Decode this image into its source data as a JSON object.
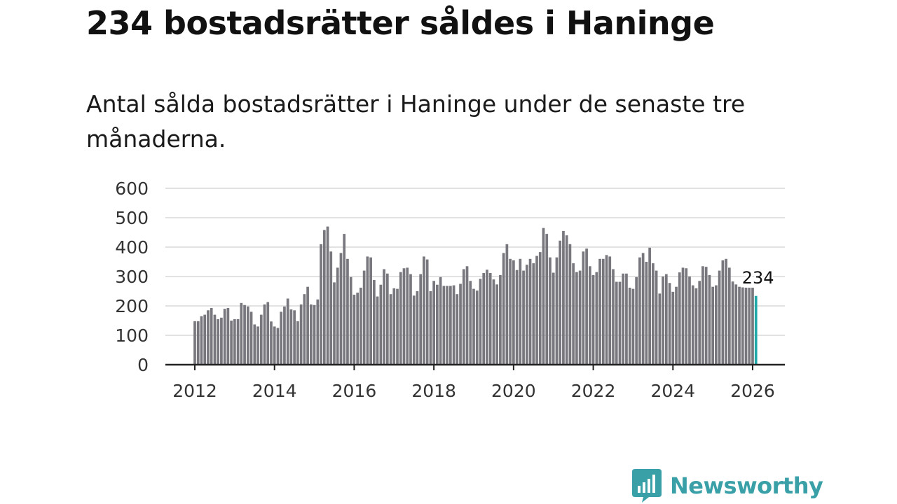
{
  "header": {
    "title": "234 bostadsrätter såldes i Haninge",
    "subtitle": "Antal sålda bostadsrätter i Haninge under de senaste tre månaderna."
  },
  "brand": {
    "name": "Newsworthy"
  },
  "colors": {
    "bar": "#77777d",
    "highlight": "#1fa8a8",
    "grid": "#d9d9d9",
    "axis": "#222222",
    "brand": "#3aa0a8"
  },
  "chart_data": {
    "type": "bar",
    "title": "Antal sålda bostadsrätter i Haninge under de senaste tre månaderna.",
    "xlabel": "",
    "ylabel": "",
    "ylim": [
      0,
      600
    ],
    "y_ticks": [
      "600",
      "500",
      "400",
      "300",
      "200",
      "100",
      "0"
    ],
    "x_ticks": [
      "2012",
      "2014",
      "2016",
      "2018",
      "2020",
      "2022",
      "2024",
      "2026"
    ],
    "start": "2012-01",
    "values": [
      148,
      148,
      165,
      170,
      185,
      193,
      170,
      155,
      160,
      190,
      193,
      150,
      155,
      155,
      210,
      203,
      198,
      180,
      137,
      130,
      170,
      205,
      213,
      147,
      130,
      125,
      180,
      198,
      225,
      188,
      185,
      148,
      205,
      240,
      265,
      205,
      203,
      222,
      410,
      458,
      470,
      385,
      280,
      330,
      380,
      445,
      360,
      298,
      238,
      245,
      262,
      320,
      368,
      365,
      288,
      232,
      272,
      325,
      310,
      240,
      260,
      258,
      315,
      328,
      330,
      308,
      235,
      250,
      308,
      368,
      358,
      250,
      285,
      272,
      298,
      268,
      268,
      268,
      270,
      240,
      275,
      325,
      335,
      285,
      258,
      252,
      292,
      312,
      323,
      312,
      290,
      273,
      305,
      380,
      410,
      360,
      355,
      322,
      360,
      320,
      340,
      360,
      345,
      370,
      383,
      465,
      445,
      365,
      313,
      365,
      422,
      455,
      440,
      410,
      345,
      315,
      320,
      385,
      395,
      335,
      305,
      315,
      360,
      360,
      373,
      368,
      325,
      282,
      282,
      310,
      310,
      262,
      258,
      298,
      365,
      380,
      350,
      398,
      345,
      320,
      242,
      300,
      308,
      278,
      248,
      265,
      314,
      330,
      328,
      300,
      270,
      260,
      285,
      335,
      333,
      305,
      265,
      270,
      320,
      355,
      360,
      330,
      283,
      273,
      265,
      263,
      262,
      262,
      262,
      234
    ],
    "highlight_label": "234",
    "highlight_index": 169
  }
}
